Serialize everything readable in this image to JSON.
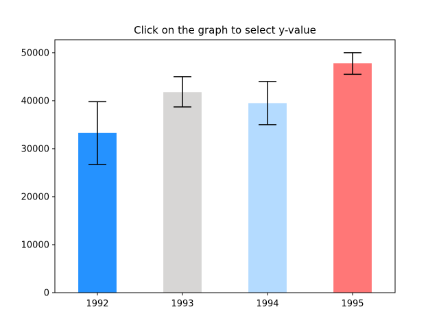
{
  "chart_data": {
    "type": "bar",
    "title": "Click on the graph to select y-value",
    "xlabel": "",
    "ylabel": "",
    "categories": [
      "1992",
      "1993",
      "1994",
      "1995"
    ],
    "values": [
      33300,
      41800,
      39500,
      47800
    ],
    "error_low": [
      26700,
      38700,
      35000,
      45500
    ],
    "error_high": [
      39800,
      45000,
      44000,
      50000
    ],
    "colors": [
      "#2592ff",
      "#d7d6d5",
      "#b4dbff",
      "#ff7777"
    ],
    "error_color": "#000000",
    "ylim": [
      0,
      52700
    ],
    "yticks": [
      0,
      10000,
      20000,
      30000,
      40000,
      50000
    ],
    "ytick_labels": [
      "0",
      "10000",
      "20000",
      "30000",
      "40000",
      "50000"
    ],
    "grid": false,
    "legend": "none"
  }
}
